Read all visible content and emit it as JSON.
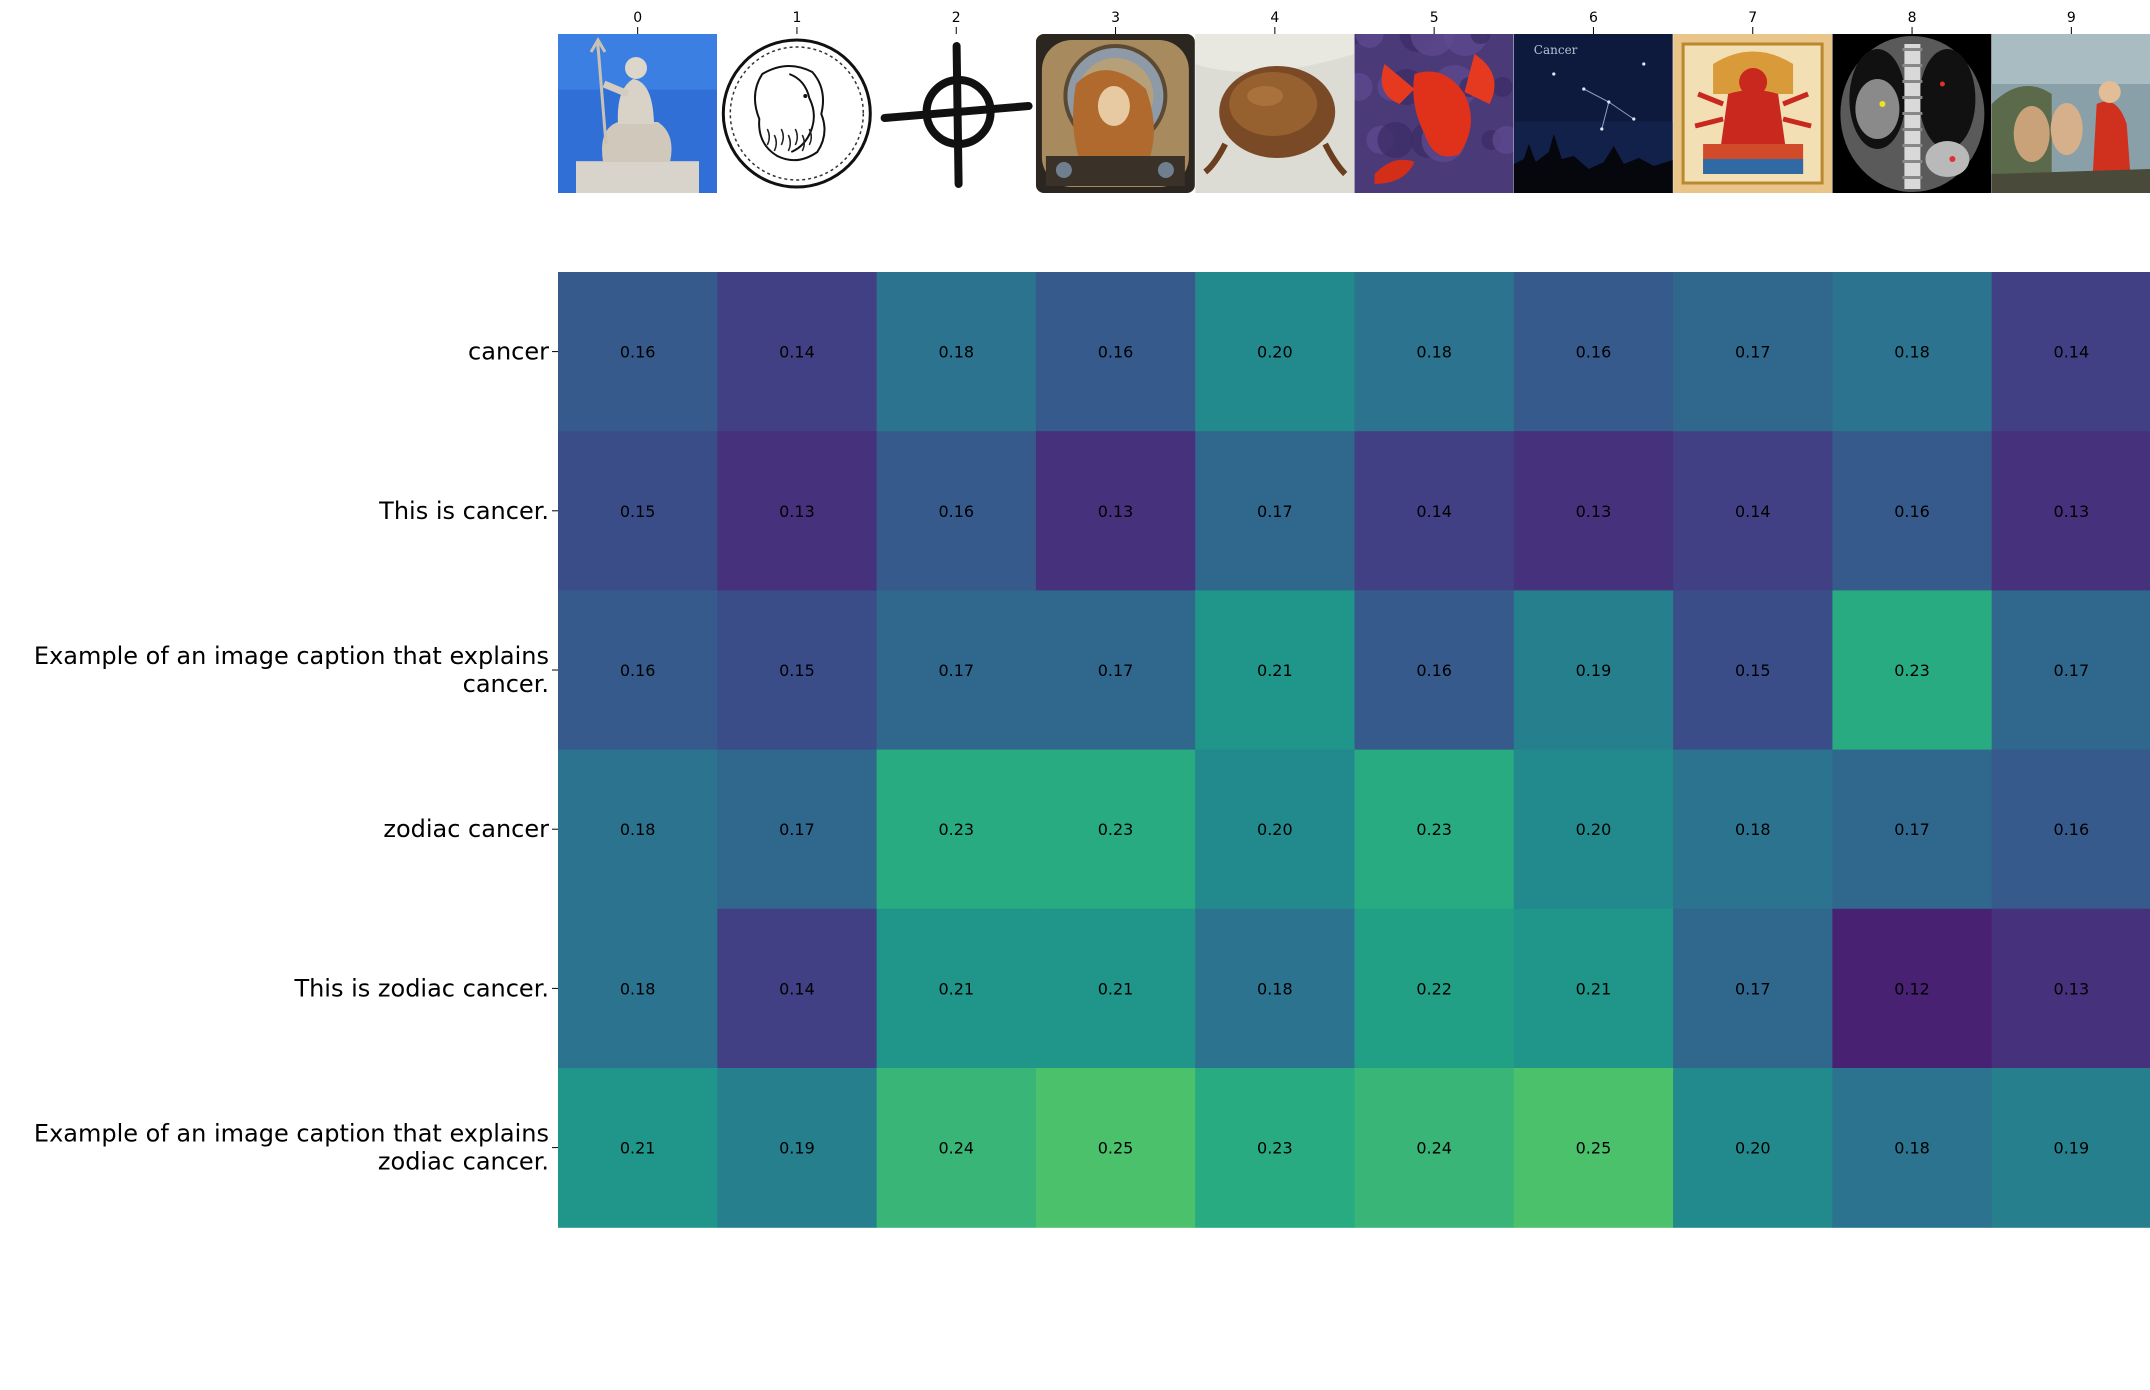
{
  "chart_data": {
    "type": "heatmap",
    "title": "",
    "xlabel": "",
    "ylabel": "",
    "colormap": "viridis",
    "color_range": [
      0.12,
      0.25
    ],
    "columns": [
      "0",
      "1",
      "2",
      "3",
      "4",
      "5",
      "6",
      "7",
      "8",
      "9"
    ],
    "column_images": [
      {
        "label": "0",
        "subject": "statue of Poseidon with trident",
        "accent": "#2f6fd6"
      },
      {
        "label": "1",
        "subject": "line drawing of a coin with two bearded heads",
        "accent": "#ffffff"
      },
      {
        "label": "2",
        "subject": "cancer zodiac symbol (circle with cross)",
        "accent": "#ffffff"
      },
      {
        "label": "3",
        "subject": "art nouveau zodiac woman portrait",
        "accent": "#6b4a2e"
      },
      {
        "label": "4",
        "subject": "brown crab on cloth",
        "accent": "#8a5a32"
      },
      {
        "label": "5",
        "subject": "red lobster on purple background",
        "accent": "#d93318"
      },
      {
        "label": "6",
        "subject": "night sky with Cancer constellation",
        "accent": "#0d1a3d"
      },
      {
        "label": "7",
        "subject": "painting of red multi-armed deity",
        "accent": "#e9c58a"
      },
      {
        "label": "8",
        "subject": "CT scan of chest",
        "accent": "#444444"
      },
      {
        "label": "9",
        "subject": "classical painting of figures",
        "accent": "#8aa0a8"
      }
    ],
    "column_image_text": {
      "6": "Cancer"
    },
    "rows": [
      "cancer",
      "This is cancer.",
      "Example of an image caption that explains cancer.",
      "zodiac cancer",
      "This is zodiac cancer.",
      "Example of an image caption that explains zodiac cancer."
    ],
    "row_label_lines": [
      [
        "cancer"
      ],
      [
        "This is cancer."
      ],
      [
        "Example of an image caption that explains",
        "cancer."
      ],
      [
        "zodiac cancer"
      ],
      [
        "This is zodiac cancer."
      ],
      [
        "Example of an image caption that explains",
        "zodiac cancer."
      ]
    ],
    "values": [
      [
        0.16,
        0.14,
        0.18,
        0.16,
        0.2,
        0.18,
        0.16,
        0.17,
        0.18,
        0.14
      ],
      [
        0.15,
        0.13,
        0.16,
        0.13,
        0.17,
        0.14,
        0.13,
        0.14,
        0.16,
        0.13
      ],
      [
        0.16,
        0.15,
        0.17,
        0.17,
        0.21,
        0.16,
        0.19,
        0.15,
        0.23,
        0.17
      ],
      [
        0.18,
        0.17,
        0.23,
        0.23,
        0.2,
        0.23,
        0.2,
        0.18,
        0.17,
        0.16
      ],
      [
        0.18,
        0.14,
        0.21,
        0.21,
        0.18,
        0.22,
        0.21,
        0.17,
        0.12,
        0.13
      ],
      [
        0.21,
        0.19,
        0.24,
        0.25,
        0.23,
        0.24,
        0.25,
        0.2,
        0.18,
        0.19
      ]
    ],
    "value_format": "0.00"
  }
}
